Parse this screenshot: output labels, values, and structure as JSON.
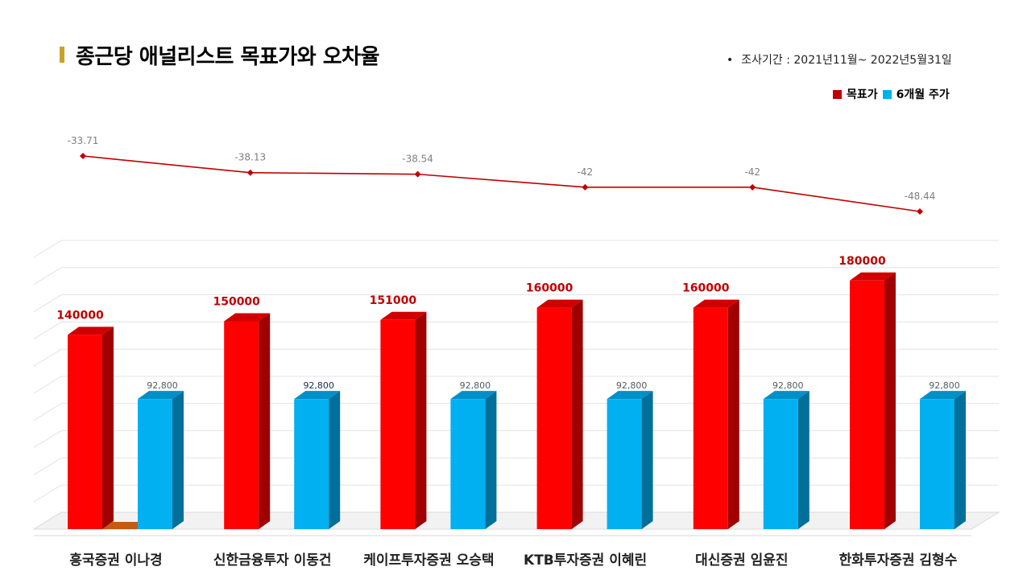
{
  "header": {
    "title": "종근당 애널리스트 목표가와 오차율",
    "period_bullet": "•",
    "period": "조사기간 : 2021년11월~ 2022년5월31일"
  },
  "legend": [
    {
      "label": "목표가",
      "color": "#c00000"
    },
    {
      "label": "6개월 주가",
      "color": "#00b0f0"
    }
  ],
  "chart_data": {
    "type": "bar",
    "categories": [
      "흥국증권 이나경",
      "신한금융투자 이동건",
      "케이프투자증권 오승택",
      "KTB투자증권 이혜린",
      "대신증권 임윤진",
      "한화투자증권 김형수"
    ],
    "series": [
      {
        "name": "목표가",
        "values": [
          140000,
          150000,
          151000,
          160000,
          160000,
          180000
        ],
        "labels": [
          "140000",
          "150000",
          "151000",
          "160000",
          "160000",
          "180000"
        ],
        "color": "#ff0000"
      },
      {
        "name": "6개월 주가",
        "values": [
          92800,
          92800,
          92800,
          92800,
          92800,
          92800
        ],
        "labels": [
          "92,800",
          "92,800",
          "92,800",
          "92,800",
          "92,800",
          "92,800"
        ],
        "color": "#00b0f0"
      }
    ],
    "error_line": {
      "values": [
        -33.71,
        -38.13,
        -38.54,
        -42,
        -42,
        -48.44
      ],
      "labels": [
        "-33.71",
        "-38.13",
        "-38.54",
        "-42",
        "-42",
        "-48.44"
      ],
      "color": "#c00000"
    },
    "ylim": [
      0,
      200000
    ],
    "grid": true,
    "legend_position": "top-right"
  }
}
